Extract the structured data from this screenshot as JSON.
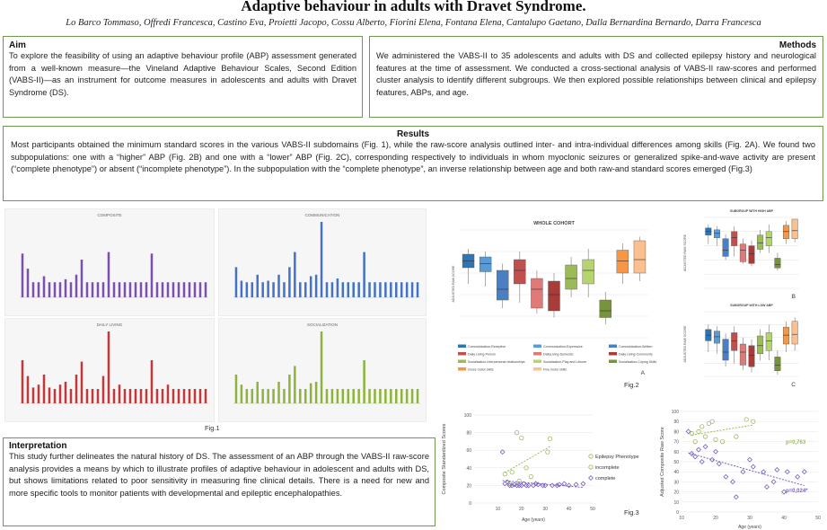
{
  "header": {
    "title": "Adaptive behaviour in adults with Dravet Syndrome.",
    "authors": "Lo Barco Tommaso, Offredi Francesca, Castino Eva, Proietti Jacopo, Cossu Alberto, Fiorini Elena, Fontana Elena, Cantalupo Gaetano, Dalla Bernardina Bernardo, Darra Francesca"
  },
  "aim": {
    "heading": "Aim",
    "text": "To explore the feasibility of using an adaptive behaviour profile (ABP) assessment generated from a well-known measure—the Vineland Adaptive Behaviour Scales, Second Edition (VABS-II)—as an instrument for outcome measures in adolescents and adults with Dravet Syndrome (DS)."
  },
  "methods": {
    "heading": "Methods",
    "text": "We administered the VABS-II to 35 adolescents and adults with DS and collected epilepsy history and neurological features at the time of assessment. We conducted a cross-sectional analysis of VABS-II raw-scores and performed cluster analysis to identify different subgroups. We then explored possible relationships between clinical and epilepsy features, ABPs, and age."
  },
  "results": {
    "heading": "Results",
    "text": "Most participants obtained the minimum standard scores in the various VABS-II subdomains (Fig. 1), while the raw-score analysis outlined inter- and intra-individual differences among skills (Fig. 2A). We found two subpopulations: one with a “higher” ABP (Fig. 2B) and one with a “lower” ABP (Fig. 2C), corresponding respectively to individuals in whom myoclonic seizures or generalized spike-and-wave activity are present (“complete phenotype”) or absent (“incomplete phenotype”). In the subpopulation with the “complete phenotype”, an inverse relationship between age and both raw-and standard scores emerged (Fig.3)"
  },
  "interpretation": {
    "heading": "Interpretation",
    "text": "This study further delineates the natural history of DS. The assessment of an ABP through the VABS-II raw-score analysis provides a means by which to illustrate profiles of adaptive behaviour in adolescent and adults with DS, but shows limitations related to poor sensitivity in measuring fine clinical details. There is a need for new and more specific tools to monitor patients with developmental and epileptic encephalopathies."
  },
  "fig1": {
    "label": "Fig.1",
    "panels": [
      {
        "title": "COMPOSITE",
        "color": "#7b52ab",
        "values": [
          58,
          38,
          20,
          20,
          28,
          20,
          20,
          20,
          24,
          20,
          30,
          50,
          20,
          20,
          20,
          20,
          60,
          20,
          20,
          20,
          20,
          20,
          20,
          20,
          58,
          20,
          20,
          20,
          20,
          20,
          20,
          20,
          20,
          20,
          20
        ]
      },
      {
        "title": "COMMUNICATION",
        "color": "#4472c4",
        "values": [
          40,
          22,
          20,
          20,
          30,
          20,
          22,
          20,
          30,
          20,
          40,
          60,
          20,
          20,
          28,
          30,
          100,
          20,
          20,
          25,
          20,
          20,
          20,
          20,
          60,
          20,
          20,
          20,
          20,
          20,
          20,
          20,
          20,
          20,
          20
        ]
      },
      {
        "title": "DAILY LIVING",
        "color": "#c0393b",
        "values": [
          60,
          38,
          22,
          26,
          40,
          22,
          20,
          26,
          30,
          20,
          40,
          58,
          20,
          20,
          20,
          38,
          100,
          20,
          26,
          20,
          20,
          20,
          20,
          20,
          60,
          20,
          20,
          26,
          20,
          20,
          20,
          20,
          20,
          20,
          20
        ]
      },
      {
        "title": "SOCIALIZATION",
        "color": "#8db33a",
        "values": [
          40,
          26,
          20,
          20,
          30,
          20,
          20,
          20,
          30,
          20,
          40,
          52,
          20,
          20,
          28,
          30,
          100,
          20,
          20,
          20,
          20,
          20,
          20,
          20,
          60,
          20,
          20,
          20,
          20,
          20,
          20,
          20,
          20,
          20,
          20
        ]
      }
    ]
  },
  "fig2": {
    "label": "Fig.2",
    "panelA": {
      "title": "WHOLE COHORT",
      "ylabel": "ADJUSTED RAW SCORE",
      "letter": "A"
    },
    "panelB": {
      "title": "SUBGROUP WITH HIGH ABP",
      "ylabel": "ADJUSTED RAW SCORE",
      "letter": "B"
    },
    "panelC": {
      "title": "SUBGROUP WITH LOW ABP",
      "ylabel": "ADJUSTED RAW SCORE",
      "letter": "C"
    },
    "legend": [
      {
        "label": "Communication-Receptive",
        "color": "#2e75b6"
      },
      {
        "label": "Communication-Expressive",
        "color": "#5b9bd5"
      },
      {
        "label": "Communication-Written",
        "color": "#4a7fc1"
      },
      {
        "label": "Daily Living-Person",
        "color": "#c0504d"
      },
      {
        "label": "DailyLiving-Domestic",
        "color": "#e07a78"
      },
      {
        "label": "Daily Living-Community",
        "color": "#a93b38"
      },
      {
        "label": "Socialization-Interpersonal relationships",
        "color": "#9bbb59"
      },
      {
        "label": "Socialization-Play and Leisure",
        "color": "#b5d36e"
      },
      {
        "label": "Socialization-Coping Skills",
        "color": "#77933c"
      },
      {
        "label": "Gross motor skills",
        "color": "#f79646"
      },
      {
        "label": "Fine motor skills",
        "color": "#fac08f"
      }
    ],
    "boxesA": [
      {
        "color": "#2e75b6",
        "q1": 52,
        "q3": 62,
        "med": 57,
        "lo": 40,
        "hi": 66
      },
      {
        "color": "#5b9bd5",
        "q1": 49,
        "q3": 60,
        "med": 55,
        "lo": 38,
        "hi": 64
      },
      {
        "color": "#4a7fc1",
        "q1": 28,
        "q3": 50,
        "med": 36,
        "lo": 22,
        "hi": 55
      },
      {
        "color": "#c0504d",
        "q1": 40,
        "q3": 58,
        "med": 50,
        "lo": 26,
        "hi": 64
      },
      {
        "color": "#e07a78",
        "q1": 22,
        "q3": 44,
        "med": 36,
        "lo": 18,
        "hi": 50
      },
      {
        "color": "#a93b38",
        "q1": 20,
        "q3": 42,
        "med": 32,
        "lo": 15,
        "hi": 48
      },
      {
        "color": "#9bbb59",
        "q1": 36,
        "q3": 54,
        "med": 44,
        "lo": 30,
        "hi": 60
      },
      {
        "color": "#b5d36e",
        "q1": 40,
        "q3": 58,
        "med": 50,
        "lo": 30,
        "hi": 66
      },
      {
        "color": "#77933c",
        "q1": 15,
        "q3": 28,
        "med": 20,
        "lo": 10,
        "hi": 34
      },
      {
        "color": "#f79646",
        "q1": 48,
        "q3": 65,
        "med": 57,
        "lo": 40,
        "hi": 70
      },
      {
        "color": "#fac08f",
        "q1": 48,
        "q3": 72,
        "med": 58,
        "lo": 42,
        "hi": 75
      }
    ]
  },
  "fig3": {
    "label": "Fig.3",
    "left": {
      "ylabel": "Composite Standardized Scores",
      "xlabel": "Age (years)",
      "xlim": [
        0,
        50
      ],
      "ylim": [
        0,
        100
      ],
      "xticks": [
        10,
        20,
        30,
        40,
        50
      ],
      "yticks": [
        0,
        20,
        40,
        60,
        80,
        100
      ],
      "legend_title": "Epilepsy Phenotype",
      "legend": [
        "incomplete",
        "complete"
      ],
      "incomplete": [
        [
          13,
          33
        ],
        [
          16,
          35
        ],
        [
          18,
          80
        ],
        [
          20,
          74
        ],
        [
          22,
          40
        ],
        [
          31,
          58
        ],
        [
          32,
          73
        ],
        [
          15,
          22
        ],
        [
          19,
          25
        ],
        [
          24,
          30
        ]
      ],
      "complete": [
        [
          12,
          58
        ],
        [
          13,
          22
        ],
        [
          15,
          20
        ],
        [
          16,
          20
        ],
        [
          18,
          20
        ],
        [
          20,
          20
        ],
        [
          21,
          22
        ],
        [
          23,
          20
        ],
        [
          25,
          20
        ],
        [
          27,
          21
        ],
        [
          30,
          20
        ],
        [
          33,
          20
        ],
        [
          36,
          21
        ],
        [
          40,
          20
        ],
        [
          43,
          21
        ],
        [
          46,
          22
        ],
        [
          14,
          24
        ],
        [
          17,
          21
        ],
        [
          19,
          20
        ],
        [
          22,
          20
        ],
        [
          26,
          22
        ],
        [
          29,
          20
        ],
        [
          35,
          20
        ],
        [
          38,
          22
        ]
      ]
    },
    "right": {
      "ylabel": "Adjusted Composite Raw Score",
      "xlabel": "Age (years)",
      "xlim": [
        10,
        50
      ],
      "ylim": [
        0,
        100
      ],
      "xticks": [
        10,
        20,
        30,
        40,
        50
      ],
      "yticks": [
        0,
        10,
        20,
        30,
        40,
        50,
        60,
        70,
        80,
        90,
        100
      ],
      "p_incomplete": "p=0,763",
      "p_complete": "p=0,024*",
      "incomplete": [
        [
          13,
          78
        ],
        [
          14,
          70
        ],
        [
          15,
          80
        ],
        [
          16,
          85
        ],
        [
          17,
          75
        ],
        [
          18,
          88
        ],
        [
          19,
          90
        ],
        [
          20,
          72
        ],
        [
          22,
          70
        ],
        [
          26,
          75
        ],
        [
          29,
          92
        ],
        [
          31,
          90
        ]
      ],
      "complete": [
        [
          12,
          80
        ],
        [
          13,
          58
        ],
        [
          14,
          55
        ],
        [
          15,
          62
        ],
        [
          16,
          50
        ],
        [
          17,
          65
        ],
        [
          19,
          52
        ],
        [
          20,
          60
        ],
        [
          21,
          48
        ],
        [
          23,
          35
        ],
        [
          25,
          30
        ],
        [
          26,
          15
        ],
        [
          28,
          40
        ],
        [
          30,
          52
        ],
        [
          31,
          45
        ],
        [
          34,
          40
        ],
        [
          35,
          25
        ],
        [
          37,
          30
        ],
        [
          38,
          42
        ],
        [
          40,
          20
        ],
        [
          41,
          40
        ],
        [
          44,
          35
        ],
        [
          46,
          40
        ]
      ]
    }
  }
}
